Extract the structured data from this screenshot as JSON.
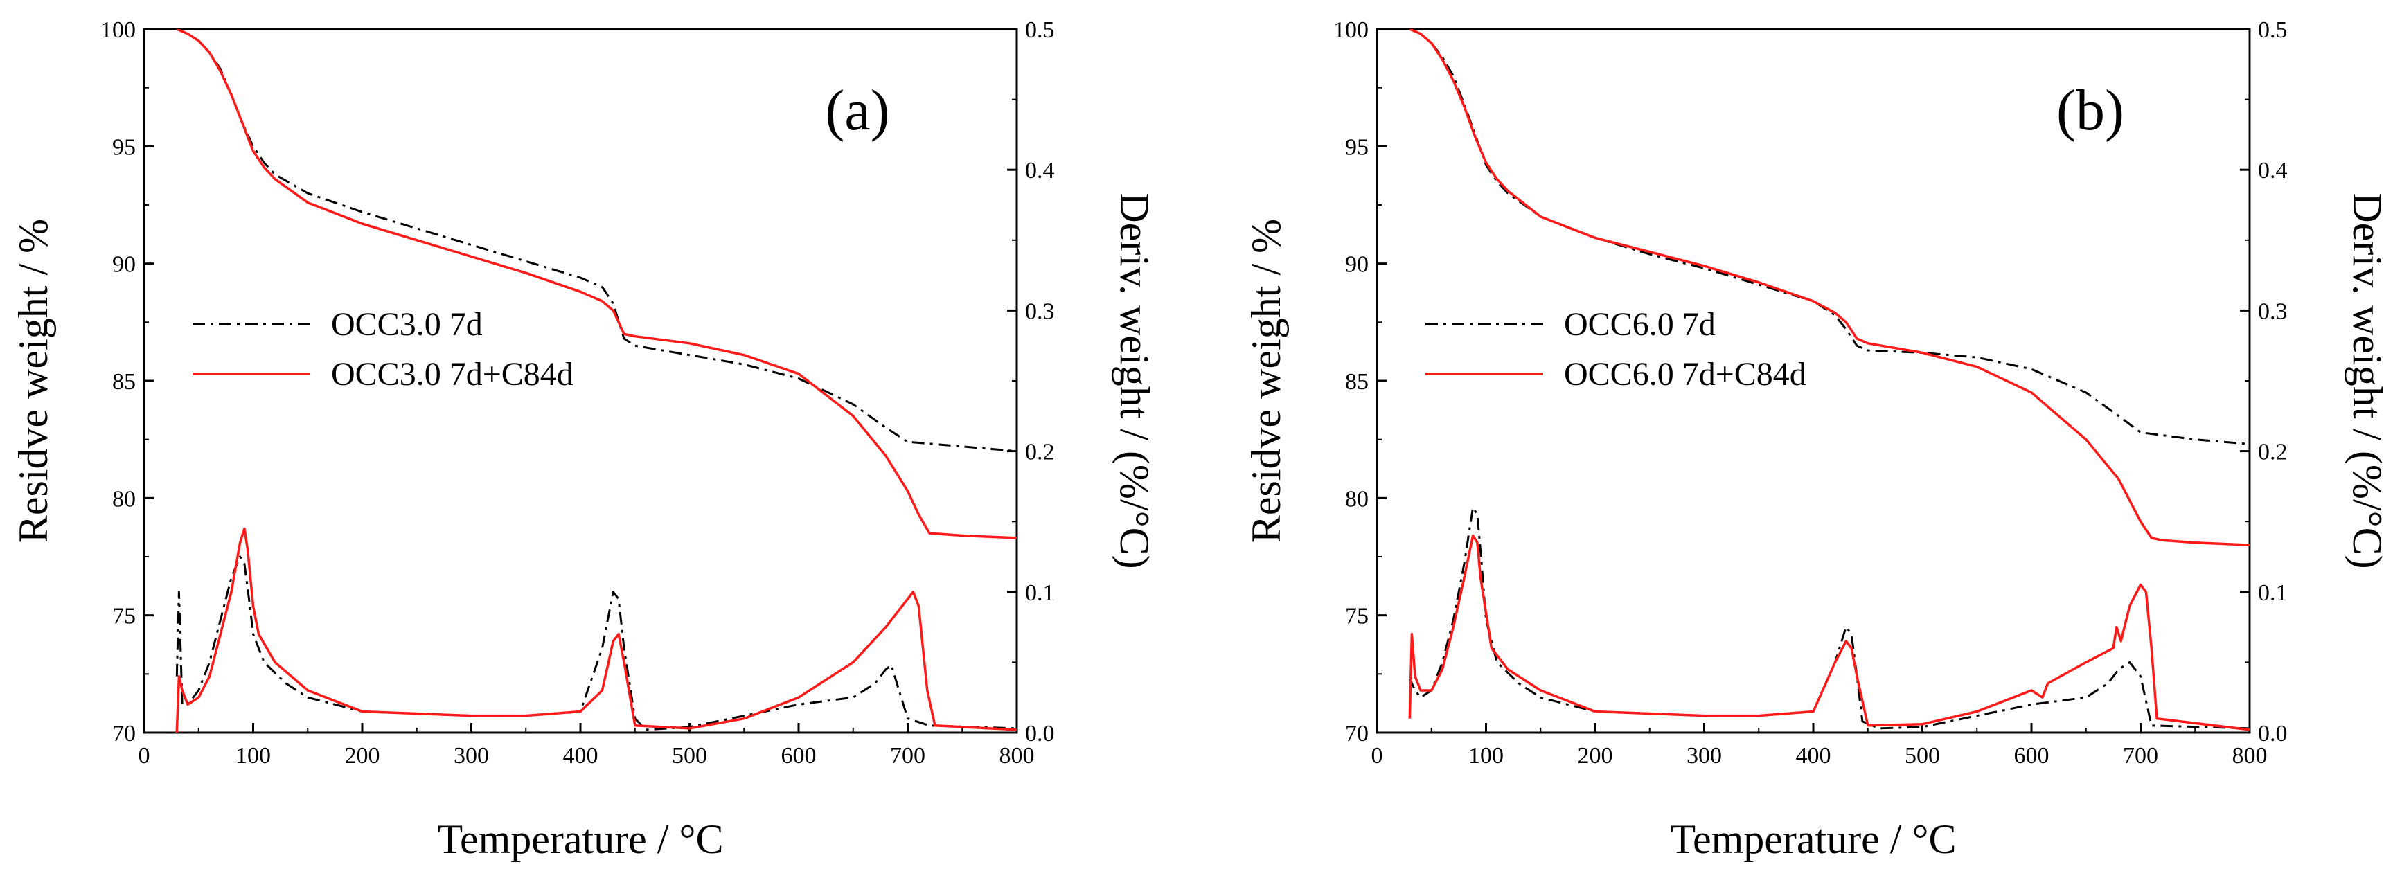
{
  "chart_data": [
    {
      "type": "line",
      "panel_label": "(a)",
      "xlabel": "Temperature / °C",
      "ylabel": "Residve weight / %",
      "y2label": "Deriv. weight / (%/°C)",
      "xlim": [
        0,
        800
      ],
      "ylim": [
        70,
        100
      ],
      "y2lim": [
        0.0,
        0.5
      ],
      "xticks": [
        "0",
        "100",
        "200",
        "300",
        "400",
        "500",
        "600",
        "700",
        "800"
      ],
      "yticks": [
        "70",
        "75",
        "80",
        "85",
        "90",
        "95",
        "100"
      ],
      "y2ticks": [
        "0.0",
        "0.1",
        "0.2",
        "0.3",
        "0.4",
        "0.5"
      ],
      "legend_position": "center-left",
      "grid": false,
      "series": [
        {
          "name": "OCC3.0 7d",
          "axis": "left",
          "color": "#000000",
          "dash": "dashdot",
          "x": [
            30,
            40,
            50,
            60,
            70,
            80,
            90,
            100,
            110,
            120,
            150,
            200,
            250,
            300,
            350,
            400,
            420,
            430,
            440,
            450,
            500,
            550,
            600,
            650,
            680,
            700,
            750,
            800
          ],
          "y": [
            100,
            99.8,
            99.5,
            99,
            98.3,
            97.2,
            96,
            95,
            94.3,
            93.8,
            93,
            92.2,
            91.5,
            90.8,
            90.1,
            89.4,
            89,
            88.3,
            86.8,
            86.5,
            86.1,
            85.7,
            85.1,
            84,
            83,
            82.4,
            82.2,
            82
          ]
        },
        {
          "name": "OCC3.0 7d+C84d",
          "axis": "left",
          "color": "#ff1a1a",
          "dash": "solid",
          "x": [
            30,
            40,
            50,
            60,
            70,
            80,
            90,
            100,
            110,
            120,
            150,
            200,
            250,
            300,
            350,
            400,
            420,
            430,
            440,
            450,
            500,
            550,
            600,
            650,
            680,
            700,
            710,
            720,
            750,
            800
          ],
          "y": [
            100,
            99.8,
            99.5,
            99,
            98.2,
            97.2,
            96,
            94.8,
            94.1,
            93.6,
            92.6,
            91.7,
            91,
            90.3,
            89.6,
            88.8,
            88.4,
            88,
            87,
            86.9,
            86.6,
            86.1,
            85.3,
            83.5,
            81.8,
            80.3,
            79.3,
            78.5,
            78.4,
            78.3
          ]
        },
        {
          "name": "",
          "axis": "right",
          "color": "#000000",
          "dash": "dashdot",
          "x": [
            30,
            32,
            35,
            40,
            50,
            60,
            70,
            80,
            88,
            92,
            97,
            100,
            110,
            130,
            150,
            200,
            300,
            350,
            400,
            420,
            430,
            435,
            440,
            450,
            460,
            500,
            600,
            650,
            670,
            680,
            685,
            700,
            720,
            800
          ],
          "y": [
            0.04,
            0.1,
            0.02,
            0.02,
            0.03,
            0.05,
            0.08,
            0.11,
            0.125,
            0.12,
            0.09,
            0.07,
            0.05,
            0.035,
            0.025,
            0.015,
            0.012,
            0.012,
            0.015,
            0.06,
            0.1,
            0.095,
            0.06,
            0.01,
            0.002,
            0.004,
            0.02,
            0.025,
            0.035,
            0.045,
            0.048,
            0.01,
            0.005,
            0.003
          ]
        },
        {
          "name": "",
          "axis": "right",
          "color": "#ff1a1a",
          "dash": "solid",
          "x": [
            30,
            32,
            35,
            40,
            50,
            60,
            70,
            80,
            88,
            92,
            95,
            100,
            105,
            120,
            150,
            200,
            300,
            350,
            400,
            420,
            430,
            435,
            440,
            450,
            500,
            550,
            600,
            650,
            680,
            700,
            705,
            710,
            718,
            725,
            800
          ],
          "y": [
            0.0,
            0.04,
            0.03,
            0.02,
            0.025,
            0.04,
            0.07,
            0.1,
            0.135,
            0.145,
            0.13,
            0.09,
            0.07,
            0.05,
            0.03,
            0.015,
            0.012,
            0.012,
            0.015,
            0.03,
            0.065,
            0.07,
            0.05,
            0.005,
            0.003,
            0.01,
            0.025,
            0.05,
            0.075,
            0.095,
            0.1,
            0.09,
            0.03,
            0.005,
            0.002
          ]
        }
      ]
    },
    {
      "type": "line",
      "panel_label": "(b)",
      "xlabel": "Temperature / °C",
      "ylabel": "Residve weight / %",
      "y2label": "Deriv. weight / (%/°C)",
      "xlim": [
        0,
        800
      ],
      "ylim": [
        70,
        100
      ],
      "y2lim": [
        0.0,
        0.5
      ],
      "xticks": [
        "0",
        "100",
        "200",
        "300",
        "400",
        "500",
        "600",
        "700",
        "800"
      ],
      "yticks": [
        "70",
        "75",
        "80",
        "85",
        "90",
        "95",
        "100"
      ],
      "y2ticks": [
        "0.0",
        "0.1",
        "0.2",
        "0.3",
        "0.4",
        "0.5"
      ],
      "legend_position": "center-left",
      "grid": false,
      "series": [
        {
          "name": "OCC6.0 7d",
          "axis": "left",
          "color": "#000000",
          "dash": "dashdot",
          "x": [
            30,
            40,
            50,
            60,
            70,
            80,
            90,
            100,
            110,
            120,
            150,
            200,
            250,
            300,
            350,
            400,
            420,
            430,
            440,
            450,
            500,
            550,
            600,
            650,
            680,
            700,
            750,
            800
          ],
          "y": [
            100,
            99.8,
            99.4,
            98.8,
            98,
            96.8,
            95.5,
            94.2,
            93.5,
            93,
            92,
            91.1,
            90.4,
            89.8,
            89.1,
            88.4,
            87.8,
            87.2,
            86.5,
            86.3,
            86.2,
            86,
            85.5,
            84.5,
            83.5,
            82.8,
            82.5,
            82.3
          ]
        },
        {
          "name": "OCC6.0 7d+C84d",
          "axis": "left",
          "color": "#ff1a1a",
          "dash": "solid",
          "x": [
            30,
            40,
            50,
            60,
            70,
            80,
            90,
            100,
            110,
            120,
            150,
            200,
            250,
            300,
            350,
            400,
            420,
            430,
            440,
            450,
            500,
            550,
            600,
            650,
            680,
            700,
            710,
            720,
            750,
            800
          ],
          "y": [
            100,
            99.8,
            99.4,
            98.7,
            97.8,
            96.7,
            95.4,
            94.3,
            93.6,
            93.1,
            92,
            91.1,
            90.5,
            89.9,
            89.2,
            88.4,
            87.9,
            87.5,
            86.8,
            86.6,
            86.2,
            85.6,
            84.5,
            82.5,
            80.8,
            79,
            78.3,
            78.2,
            78.1,
            78
          ]
        },
        {
          "name": "",
          "axis": "right",
          "color": "#000000",
          "dash": "dashdot",
          "x": [
            30,
            32,
            35,
            40,
            50,
            60,
            70,
            80,
            88,
            92,
            96,
            100,
            110,
            130,
            150,
            200,
            300,
            350,
            400,
            420,
            430,
            435,
            440,
            445,
            460,
            500,
            600,
            650,
            670,
            680,
            690,
            700,
            710,
            800
          ],
          "y": [
            0.04,
            0.035,
            0.03,
            0.025,
            0.03,
            0.05,
            0.08,
            0.12,
            0.16,
            0.155,
            0.12,
            0.08,
            0.05,
            0.035,
            0.025,
            0.015,
            0.012,
            0.012,
            0.015,
            0.05,
            0.075,
            0.07,
            0.04,
            0.008,
            0.003,
            0.004,
            0.02,
            0.025,
            0.035,
            0.045,
            0.05,
            0.04,
            0.005,
            0.003
          ]
        },
        {
          "name": "",
          "axis": "right",
          "color": "#ff1a1a",
          "dash": "solid",
          "x": [
            30,
            32,
            35,
            40,
            50,
            60,
            70,
            80,
            88,
            92,
            95,
            100,
            105,
            120,
            150,
            200,
            300,
            350,
            400,
            420,
            430,
            435,
            440,
            450,
            500,
            550,
            600,
            610,
            615,
            650,
            675,
            678,
            682,
            690,
            700,
            705,
            710,
            715,
            800
          ],
          "y": [
            0.01,
            0.07,
            0.04,
            0.03,
            0.03,
            0.045,
            0.075,
            0.11,
            0.14,
            0.135,
            0.11,
            0.085,
            0.06,
            0.045,
            0.03,
            0.015,
            0.012,
            0.012,
            0.015,
            0.05,
            0.065,
            0.06,
            0.04,
            0.005,
            0.006,
            0.015,
            0.03,
            0.025,
            0.035,
            0.05,
            0.06,
            0.075,
            0.065,
            0.09,
            0.105,
            0.1,
            0.06,
            0.01,
            0.002
          ]
        }
      ]
    }
  ]
}
